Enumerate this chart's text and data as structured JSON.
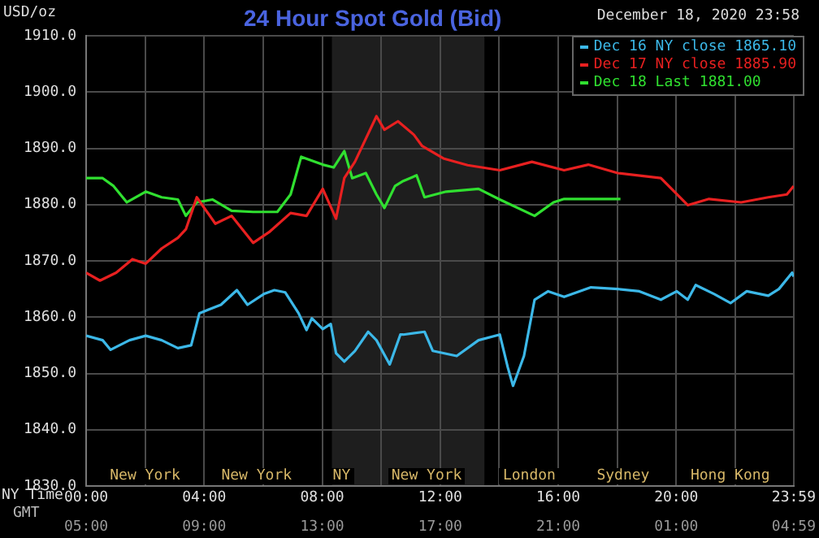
{
  "chart_data": {
    "type": "line",
    "title": "24 Hour Spot Gold (Bid)",
    "ylabel": "USD/oz",
    "xlabel": "NY Time",
    "x2label": "GMT",
    "legend_title": "December 18, 2020 23:58",
    "legend": "top right",
    "grid": true,
    "marker": "none",
    "line_style": "solid",
    "xlim": [
      0,
      23.983
    ],
    "ylim": [
      1830,
      1910
    ],
    "xticks": [
      {
        "value": 0,
        "label": "00:00"
      },
      {
        "value": 2,
        "label": null
      },
      {
        "value": 4,
        "label": "04:00"
      },
      {
        "value": 6,
        "label": null
      },
      {
        "value": 8,
        "label": "08:00"
      },
      {
        "value": 10,
        "label": null
      },
      {
        "value": 12,
        "label": "12:00"
      },
      {
        "value": 14,
        "label": null
      },
      {
        "value": 16,
        "label": "16:00"
      },
      {
        "value": 18,
        "label": null
      },
      {
        "value": 20,
        "label": "20:00"
      },
      {
        "value": 22,
        "label": null
      },
      {
        "value": 23.983,
        "label": "23:59"
      }
    ],
    "x2lim": [
      "2020-12-18T05:00",
      "2020-12-19T04:59"
    ],
    "x2ticks": [
      {
        "value": "2020-12-18T05:00",
        "label": "05:00"
      },
      {
        "value": "2020-12-18T09:00",
        "label": "09:00"
      },
      {
        "value": "2020-12-18T13:00",
        "label": "13:00"
      },
      {
        "value": "2020-12-18T17:00",
        "label": "17:00"
      },
      {
        "value": "2020-12-18T21:00",
        "label": "21:00"
      },
      {
        "value": "2020-12-19T01:00",
        "label": "01:00"
      },
      {
        "value": "2020-12-19T04:59",
        "label": "04:59"
      }
    ],
    "yticks": [
      {
        "value": 1830,
        "label": "1830.0"
      },
      {
        "value": 1840,
        "label": "1840.0"
      },
      {
        "value": 1850,
        "label": "1850.0"
      },
      {
        "value": 1860,
        "label": "1860.0"
      },
      {
        "value": 1870,
        "label": "1870.0"
      },
      {
        "value": 1880,
        "label": "1880.0"
      },
      {
        "value": 1890,
        "label": "1890.0"
      },
      {
        "value": 1900,
        "label": "1900.0"
      },
      {
        "value": 1910,
        "label": "1910.0"
      }
    ],
    "bands": [
      {
        "axis": "x",
        "from": 8.33,
        "to": 13.5,
        "color": "#1e1e1e"
      }
    ],
    "annotations": [
      "New York",
      "New York",
      "NY",
      "New York",
      "London",
      "Sydney",
      "Hong Kong"
    ],
    "series": [
      {
        "name": "Dec 16 NY close 1865.10",
        "color": "#3cb8e8",
        "x": [
          0,
          0.56,
          0.83,
          1.47,
          2.02,
          2.56,
          3.11,
          3.56,
          3.84,
          4.57,
          5.11,
          5.47,
          6.02,
          6.38,
          6.75,
          7.2,
          7.47,
          7.65,
          8.02,
          8.29,
          8.47,
          8.75,
          9.11,
          9.56,
          9.84,
          10.29,
          10.65,
          10.75,
          11.47,
          11.75,
          12.56,
          13.3,
          14.02,
          14.29,
          14.47,
          14.84,
          15.2,
          15.66,
          16.2,
          17.11,
          18.02,
          18.75,
          19.48,
          20.02,
          20.39,
          20.66,
          21.29,
          21.84,
          22.39,
          23.12,
          23.48,
          23.93,
          23.98
        ],
        "values": [
          1856.7,
          1855.9,
          1854.2,
          1855.9,
          1856.7,
          1855.9,
          1854.5,
          1855,
          1860.7,
          1862.2,
          1864.8,
          1862.2,
          1864.1,
          1864.8,
          1864.4,
          1860.7,
          1857.7,
          1859.8,
          1857.9,
          1858.8,
          1853.6,
          1852.1,
          1854,
          1857.4,
          1855.9,
          1851.6,
          1856.9,
          1856.9,
          1857.4,
          1854,
          1853.1,
          1855.9,
          1856.9,
          1851.1,
          1847.8,
          1853.1,
          1863.1,
          1864.6,
          1863.6,
          1865.3,
          1865,
          1864.6,
          1863.1,
          1864.6,
          1863.1,
          1865.7,
          1864.1,
          1862.5,
          1864.6,
          1863.8,
          1865,
          1867.9,
          1867.2
        ]
      },
      {
        "name": "Dec 17 NY close 1885.90",
        "color": "#e82020",
        "x": [
          0,
          0.47,
          1.02,
          1.57,
          2.02,
          2.56,
          3.11,
          3.38,
          3.75,
          4.38,
          4.93,
          5.66,
          6.2,
          6.93,
          7.47,
          8.02,
          8.47,
          8.75,
          9.11,
          9.84,
          10.11,
          10.57,
          11.11,
          11.39,
          12.11,
          12.93,
          14.02,
          15.11,
          16.2,
          17.02,
          18.02,
          19.48,
          20.39,
          21.11,
          22.2,
          23.12,
          23.75,
          23.98
        ],
        "values": [
          1867.9,
          1866.5,
          1867.9,
          1870.3,
          1869.5,
          1872.2,
          1874.1,
          1875.6,
          1881.3,
          1876.6,
          1878,
          1873.2,
          1875.1,
          1878.5,
          1878,
          1882.8,
          1877.5,
          1884.7,
          1887.6,
          1895.7,
          1893.3,
          1894.8,
          1892.4,
          1890.4,
          1888.2,
          1887,
          1886.1,
          1887.6,
          1886.1,
          1887.1,
          1885.6,
          1884.7,
          1879.9,
          1881,
          1880.4,
          1881.3,
          1881.8,
          1883.3
        ]
      },
      {
        "name": "Dec 18 Last 1881.00",
        "color": "#30e030",
        "x": [
          0,
          0.56,
          0.93,
          1.38,
          2.02,
          2.56,
          3.11,
          3.38,
          3.75,
          4.29,
          4.93,
          5.66,
          6.48,
          6.93,
          7.29,
          8.02,
          8.39,
          8.75,
          9.02,
          9.48,
          9.84,
          10.11,
          10.47,
          10.75,
          11.2,
          11.47,
          12.2,
          13.3,
          14.02,
          15.2,
          15.84,
          16.2,
          17.11,
          18.11
        ],
        "values": [
          1884.7,
          1884.7,
          1883.3,
          1880.4,
          1882.3,
          1881.3,
          1880.9,
          1878,
          1880.4,
          1880.9,
          1878.9,
          1878.7,
          1878.7,
          1881.8,
          1888.5,
          1887.1,
          1886.6,
          1889.5,
          1884.7,
          1885.6,
          1881.8,
          1879.4,
          1883.3,
          1884.2,
          1885.2,
          1881.3,
          1882.3,
          1882.8,
          1880.9,
          1878,
          1880.4,
          1881,
          1881,
          1881
        ]
      }
    ]
  }
}
